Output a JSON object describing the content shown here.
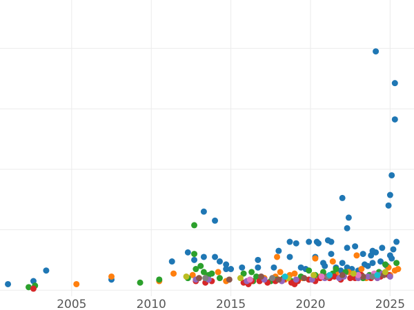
{
  "chart_data": {
    "type": "scatter",
    "title": "",
    "xlabel": "",
    "ylabel": "",
    "xlim": [
      2000.5,
      2026.5
    ],
    "ylim": [
      -0.2,
      9.6
    ],
    "x_ticks": [
      2005,
      2010,
      2015,
      2020,
      2025
    ],
    "x_tick_labels": [
      "2005",
      "2010",
      "2015",
      "2020",
      "2025"
    ],
    "y_gridlines": [
      0,
      2,
      4,
      6,
      8
    ],
    "grid": true,
    "legend": "none",
    "series": [
      {
        "color": "#1f77b4",
        "points": [
          [
            2001.0,
            0.2
          ],
          [
            2002.6,
            0.3
          ],
          [
            2003.4,
            0.65
          ],
          [
            2007.5,
            0.35
          ],
          [
            2011.3,
            0.95
          ],
          [
            2012.3,
            1.25
          ],
          [
            2012.7,
            1.0
          ],
          [
            2013.3,
            1.1
          ],
          [
            2013.3,
            2.6
          ],
          [
            2014.0,
            2.3
          ],
          [
            2014.0,
            1.1
          ],
          [
            2014.3,
            0.95
          ],
          [
            2014.7,
            0.85
          ],
          [
            2014.7,
            0.7
          ],
          [
            2015.0,
            0.7
          ],
          [
            2015.7,
            0.75
          ],
          [
            2016.7,
            1.0
          ],
          [
            2016.7,
            0.75
          ],
          [
            2017.7,
            0.75
          ],
          [
            2018.0,
            1.3
          ],
          [
            2018.7,
            1.6
          ],
          [
            2018.7,
            1.1
          ],
          [
            2019.1,
            1.55
          ],
          [
            2019.4,
            0.75
          ],
          [
            2019.9,
            1.6
          ],
          [
            2020.3,
            1.1
          ],
          [
            2020.4,
            1.6
          ],
          [
            2020.5,
            1.55
          ],
          [
            2020.8,
            0.9
          ],
          [
            2021.1,
            1.65
          ],
          [
            2021.3,
            1.6
          ],
          [
            2021.3,
            1.2
          ],
          [
            2022.0,
            3.05
          ],
          [
            2022.0,
            0.9
          ],
          [
            2022.3,
            2.05
          ],
          [
            2022.3,
            1.4
          ],
          [
            2022.3,
            0.75
          ],
          [
            2022.4,
            2.4
          ],
          [
            2022.8,
            1.45
          ],
          [
            2023.3,
            1.2
          ],
          [
            2023.4,
            0.85
          ],
          [
            2023.8,
            1.15
          ],
          [
            2023.9,
            1.3
          ],
          [
            2023.9,
            0.9
          ],
          [
            2024.1,
            1.25
          ],
          [
            2024.1,
            7.9
          ],
          [
            2024.4,
            0.95
          ],
          [
            2024.5,
            1.4
          ],
          [
            2024.9,
            2.8
          ],
          [
            2025.0,
            3.15
          ],
          [
            2025.0,
            1.15
          ],
          [
            2025.1,
            1.05
          ],
          [
            2025.1,
            3.8
          ],
          [
            2025.2,
            1.35
          ],
          [
            2025.3,
            5.65
          ],
          [
            2025.3,
            6.85
          ],
          [
            2025.4,
            1.6
          ],
          [
            2021.6,
            0.75
          ],
          [
            2021.9,
            0.65
          ],
          [
            2022.6,
            0.7
          ],
          [
            2023.0,
            0.65
          ],
          [
            2023.6,
            0.8
          ],
          [
            2024.8,
            0.8
          ],
          [
            2020.9,
            0.8
          ],
          [
            2019.7,
            0.7
          ]
        ]
      },
      {
        "color": "#ff7f0e",
        "points": [
          [
            2005.3,
            0.2
          ],
          [
            2007.5,
            0.45
          ],
          [
            2010.5,
            0.3
          ],
          [
            2011.4,
            0.55
          ],
          [
            2012.6,
            0.5
          ],
          [
            2013.5,
            0.45
          ],
          [
            2014.2,
            0.6
          ],
          [
            2014.7,
            0.3
          ],
          [
            2017.1,
            0.4
          ],
          [
            2017.8,
            0.45
          ],
          [
            2017.9,
            1.1
          ],
          [
            2018.1,
            0.6
          ],
          [
            2018.4,
            0.35
          ],
          [
            2018.7,
            0.5
          ],
          [
            2019.0,
            0.55
          ],
          [
            2019.5,
            0.4
          ],
          [
            2020.3,
            1.05
          ],
          [
            2020.6,
            0.45
          ],
          [
            2021.4,
            0.95
          ],
          [
            2021.6,
            0.55
          ],
          [
            2022.4,
            0.6
          ],
          [
            2022.9,
            1.15
          ],
          [
            2023.2,
            0.7
          ],
          [
            2023.5,
            0.4
          ],
          [
            2024.3,
            0.55
          ],
          [
            2024.9,
            0.75
          ],
          [
            2025.0,
            0.5
          ],
          [
            2025.3,
            0.65
          ],
          [
            2025.5,
            0.7
          ]
        ]
      },
      {
        "color": "#2ca02c",
        "points": [
          [
            2002.3,
            0.1
          ],
          [
            2002.7,
            0.15
          ],
          [
            2009.3,
            0.25
          ],
          [
            2010.5,
            0.35
          ],
          [
            2012.3,
            0.4
          ],
          [
            2012.7,
            1.2
          ],
          [
            2012.7,
            2.15
          ],
          [
            2012.8,
            0.7
          ],
          [
            2013.1,
            0.8
          ],
          [
            2013.3,
            0.6
          ],
          [
            2013.6,
            0.5
          ],
          [
            2014.3,
            0.4
          ],
          [
            2015.8,
            0.55
          ],
          [
            2016.3,
            0.6
          ],
          [
            2016.4,
            0.3
          ],
          [
            2017.5,
            0.3
          ],
          [
            2017.9,
            0.35
          ],
          [
            2018.3,
            0.4
          ],
          [
            2018.8,
            0.3
          ],
          [
            2019.4,
            0.45
          ],
          [
            2019.9,
            0.65
          ],
          [
            2020.3,
            0.5
          ],
          [
            2020.8,
            0.6
          ],
          [
            2021.4,
            0.55
          ],
          [
            2021.6,
            0.7
          ],
          [
            2022.2,
            0.6
          ],
          [
            2023.3,
            0.4
          ],
          [
            2023.7,
            0.5
          ],
          [
            2024.3,
            0.6
          ],
          [
            2024.7,
            0.85
          ],
          [
            2025.4,
            0.9
          ],
          [
            2013.8,
            0.55
          ],
          [
            2016.6,
            0.45
          ]
        ]
      },
      {
        "color": "#d62728",
        "points": [
          [
            2002.6,
            0.05
          ],
          [
            2012.8,
            0.3
          ],
          [
            2013.4,
            0.25
          ],
          [
            2013.8,
            0.3
          ],
          [
            2015.8,
            0.25
          ],
          [
            2016.1,
            0.2
          ],
          [
            2016.8,
            0.3
          ],
          [
            2017.3,
            0.25
          ],
          [
            2017.8,
            0.3
          ],
          [
            2018.3,
            0.35
          ],
          [
            2018.8,
            0.25
          ],
          [
            2019.2,
            0.3
          ],
          [
            2019.9,
            0.35
          ],
          [
            2020.3,
            0.3
          ],
          [
            2020.6,
            0.4
          ],
          [
            2021.2,
            0.4
          ],
          [
            2021.9,
            0.35
          ],
          [
            2022.5,
            0.4
          ],
          [
            2022.8,
            0.4
          ],
          [
            2023.2,
            0.5
          ],
          [
            2023.8,
            0.4
          ],
          [
            2024.4,
            0.45
          ],
          [
            2024.9,
            0.5
          ],
          [
            2016.3,
            0.3
          ],
          [
            2019.0,
            0.2
          ],
          [
            2021.5,
            0.45
          ]
        ]
      },
      {
        "color": "#9467bd",
        "points": [
          [
            2012.8,
            0.35
          ],
          [
            2013.6,
            0.35
          ],
          [
            2016.0,
            0.3
          ],
          [
            2017.1,
            0.35
          ],
          [
            2018.2,
            0.3
          ],
          [
            2019.1,
            0.35
          ],
          [
            2020.1,
            0.35
          ],
          [
            2020.9,
            0.4
          ],
          [
            2021.8,
            0.4
          ],
          [
            2022.1,
            0.45
          ],
          [
            2023.0,
            0.4
          ],
          [
            2023.6,
            0.45
          ],
          [
            2024.2,
            0.4
          ],
          [
            2024.5,
            0.55
          ],
          [
            2025.0,
            0.45
          ]
        ]
      },
      {
        "color": "#8c564b",
        "points": [
          [
            2013.0,
            0.4
          ],
          [
            2014.9,
            0.35
          ],
          [
            2016.9,
            0.45
          ],
          [
            2018.0,
            0.35
          ],
          [
            2019.6,
            0.4
          ],
          [
            2021.0,
            0.45
          ],
          [
            2022.0,
            0.5
          ],
          [
            2023.3,
            0.45
          ],
          [
            2024.6,
            0.5
          ]
        ]
      },
      {
        "color": "#e377c2",
        "points": [
          [
            2016.2,
            0.35
          ],
          [
            2020.7,
            0.45
          ],
          [
            2023.0,
            0.5
          ],
          [
            2024.0,
            0.55
          ]
        ]
      },
      {
        "color": "#7f7f7f",
        "points": [
          [
            2013.4,
            0.4
          ],
          [
            2017.6,
            0.4
          ],
          [
            2021.1,
            0.45
          ],
          [
            2023.9,
            0.45
          ]
        ]
      },
      {
        "color": "#bcbd22",
        "points": [
          [
            2012.2,
            0.45
          ],
          [
            2015.6,
            0.4
          ],
          [
            2018.6,
            0.4
          ],
          [
            2020.2,
            0.5
          ],
          [
            2022.7,
            0.55
          ],
          [
            2024.7,
            0.6
          ]
        ]
      },
      {
        "color": "#17becf",
        "points": [
          [
            2018.4,
            0.45
          ],
          [
            2021.2,
            0.5
          ],
          [
            2024.2,
            0.5
          ]
        ]
      }
    ]
  }
}
